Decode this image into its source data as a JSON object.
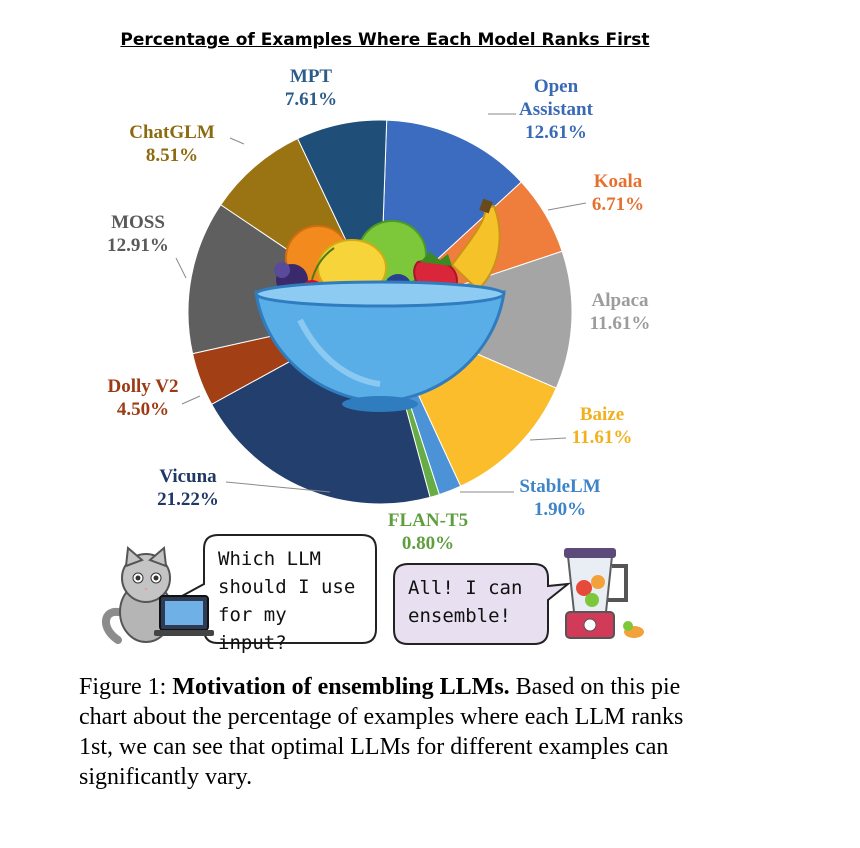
{
  "chart_data": {
    "type": "pie",
    "title": "Percentage of Examples Where Each Model Ranks First",
    "slices": [
      {
        "name": "Open Assistant",
        "label_lines": [
          "Open",
          "Assistant"
        ],
        "value": 12.61,
        "value_label": "12.61%",
        "color": "#3b6cbf"
      },
      {
        "name": "Koala",
        "label_lines": [
          "Koala"
        ],
        "value": 6.71,
        "value_label": "6.71%",
        "color": "#ef7d3b"
      },
      {
        "name": "Alpaca",
        "label_lines": [
          "Alpaca"
        ],
        "value": 11.61,
        "value_label": "11.61%",
        "color": "#a5a5a5"
      },
      {
        "name": "Baize",
        "label_lines": [
          "Baize"
        ],
        "value": 11.61,
        "value_label": "11.61%",
        "color": "#fbbd2b"
      },
      {
        "name": "StableLM",
        "label_lines": [
          "StableLM"
        ],
        "value": 1.9,
        "value_label": "1.90%",
        "color": "#4b93d6"
      },
      {
        "name": "FLAN-T5",
        "label_lines": [
          "FLAN-T5"
        ],
        "value": 0.8,
        "value_label": "0.80%",
        "color": "#66ad47"
      },
      {
        "name": "Vicuna",
        "label_lines": [
          "Vicuna"
        ],
        "value": 21.22,
        "value_label": "21.22%",
        "color": "#223f6e"
      },
      {
        "name": "Dolly V2",
        "label_lines": [
          "Dolly V2"
        ],
        "value": 4.5,
        "value_label": "4.50%",
        "color": "#a33f14"
      },
      {
        "name": "MOSS",
        "label_lines": [
          "MOSS"
        ],
        "value": 12.91,
        "value_label": "12.91%",
        "color": "#5f5f5f"
      },
      {
        "name": "ChatGLM",
        "label_lines": [
          "ChatGLM"
        ],
        "value": 8.51,
        "value_label": "8.51%",
        "color": "#9a7312"
      },
      {
        "name": "MPT",
        "label_lines": [
          "MPT"
        ],
        "value": 7.61,
        "value_label": "7.61%",
        "color": "#1f4e79"
      }
    ],
    "label_colors": {
      "Open Assistant": "#3a6ab5",
      "Koala": "#e8702f",
      "Alpaca": "#9c9c9c",
      "Baize": "#f2b01e",
      "StableLM": "#3e84c7",
      "FLAN-T5": "#5e9e3e",
      "Vicuna": "#1f3864",
      "Dolly V2": "#9c3b14",
      "MOSS": "#595959",
      "ChatGLM": "#8c6a10",
      "MPT": "#2e5c8a"
    }
  },
  "speech": {
    "question_lines": [
      "Which LLM",
      "should I use",
      "for my input?"
    ],
    "answer_lines": [
      "All! I can",
      "ensemble!"
    ]
  },
  "caption": {
    "prefix": "Figure 1: ",
    "bold": "Motivation of ensembling LLMs.",
    "rest": " Based on this pie chart about the percentage of examples where each LLM ranks 1st, we can see that optimal LLMs for different examples can significantly vary."
  },
  "icons": [
    "fruit-bowl-icon",
    "cat-laptop-icon",
    "blender-icon"
  ]
}
